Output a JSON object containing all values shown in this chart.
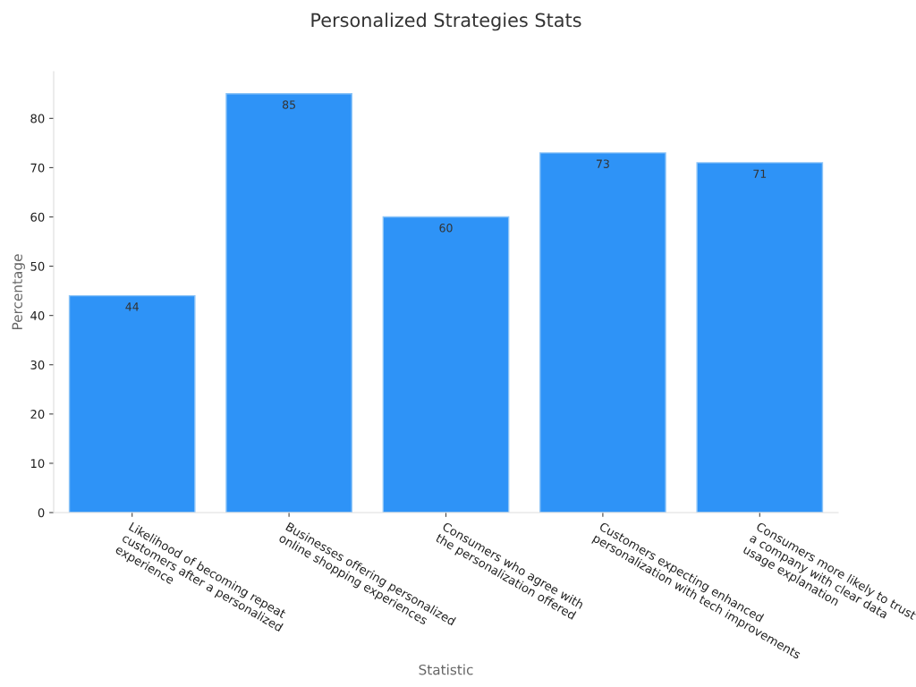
{
  "chart_data": {
    "type": "bar",
    "title": "Personalized Strategies Stats",
    "xlabel": "Statistic",
    "ylabel": "Percentage",
    "categories": [
      "Likelihood of becoming repeat\ncustomers after a personalized\nexperience",
      "Businesses offering personalized\nonline shopping experiences",
      "Consumers who agree with\nthe personalization offered",
      "Customers expecting enhanced\npersonalization with tech improvements",
      "Consumers more likely to trust\na company with clear data\nusage explanation"
    ],
    "values": [
      44,
      85,
      60,
      73,
      71
    ],
    "color": "#2e93f7",
    "ylim": [
      0,
      89.5
    ],
    "yticks": [
      0,
      10,
      20,
      30,
      40,
      50,
      60,
      70,
      80
    ],
    "grid": false,
    "data_labels": true
  }
}
